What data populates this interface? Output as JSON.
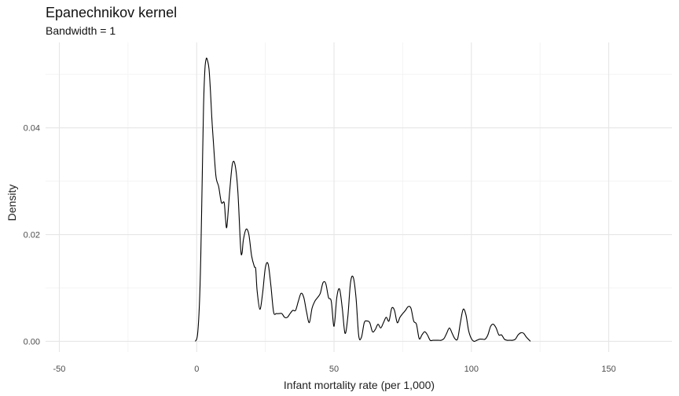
{
  "chart_data": {
    "type": "line",
    "title": "Epanechnikov kernel",
    "subtitle": "Bandwidth = 1",
    "xlabel": "Infant mortality rate (per 1,000)",
    "ylabel": "Density",
    "xlim": [
      -55,
      173
    ],
    "ylim": [
      -0.002,
      0.056
    ],
    "x_ticks": [
      -50,
      0,
      50,
      100,
      150
    ],
    "x_tick_labels": [
      "-50",
      "0",
      "50",
      "100",
      "150"
    ],
    "y_ticks": [
      0.0,
      0.02,
      0.04
    ],
    "y_tick_labels": [
      "0.00",
      "0.02",
      "0.04"
    ],
    "grid": true,
    "series": [
      {
        "x": [
          -0.5,
          0.3,
          1,
          1.5,
          2,
          2.5,
          3,
          3.5,
          4,
          4.5,
          5,
          5.5,
          6,
          7,
          8,
          9,
          10,
          10.5,
          11,
          12,
          13,
          14,
          15,
          16,
          16.5,
          17,
          18,
          19,
          20,
          21,
          21.5,
          22,
          23,
          24,
          25,
          26,
          27,
          28,
          29,
          30,
          31,
          32,
          33,
          34,
          35,
          36,
          37,
          38,
          39,
          40,
          41,
          42,
          43,
          44,
          45,
          46,
          47,
          48,
          49,
          50,
          51,
          52,
          53,
          54,
          55,
          56,
          57,
          58,
          59,
          60,
          61,
          62,
          63,
          64,
          65,
          66,
          67,
          68,
          69,
          70,
          71,
          72,
          73,
          74,
          75,
          76,
          77,
          78,
          79,
          80,
          81,
          82,
          83,
          84,
          85,
          86,
          87,
          88,
          89,
          90,
          91,
          92,
          93,
          94,
          95,
          96,
          97,
          98,
          99,
          100,
          101,
          102,
          103,
          104,
          105,
          106,
          107,
          108,
          109,
          110,
          111,
          112,
          113,
          114,
          115,
          116,
          117,
          118,
          119,
          120,
          121.5
        ],
        "y": [
          0.0,
          0.0012,
          0.007,
          0.016,
          0.03,
          0.044,
          0.051,
          0.053,
          0.0525,
          0.051,
          0.047,
          0.042,
          0.038,
          0.031,
          0.029,
          0.026,
          0.026,
          0.023,
          0.0215,
          0.028,
          0.0332,
          0.033,
          0.028,
          0.0175,
          0.0165,
          0.019,
          0.021,
          0.02,
          0.016,
          0.014,
          0.0135,
          0.0095,
          0.006,
          0.009,
          0.0138,
          0.0145,
          0.0105,
          0.0055,
          0.0052,
          0.0052,
          0.0052,
          0.0045,
          0.0045,
          0.0052,
          0.0058,
          0.0058,
          0.0075,
          0.009,
          0.0082,
          0.0055,
          0.0035,
          0.0062,
          0.0075,
          0.0082,
          0.009,
          0.011,
          0.0108,
          0.0082,
          0.0075,
          0.0028,
          0.0082,
          0.0098,
          0.0062,
          0.0015,
          0.0045,
          0.011,
          0.012,
          0.0082,
          0.001,
          0.0008,
          0.0035,
          0.0038,
          0.0035,
          0.0018,
          0.0022,
          0.0032,
          0.0025,
          0.0035,
          0.0045,
          0.0038,
          0.0062,
          0.0058,
          0.0035,
          0.0045,
          0.0052,
          0.0058,
          0.0065,
          0.0062,
          0.0038,
          0.0032,
          0.0005,
          0.0012,
          0.0018,
          0.0012,
          0.0002,
          0.0002,
          0.0002,
          0.0002,
          0.0002,
          0.0005,
          0.0015,
          0.0025,
          0.0015,
          0.0005,
          0.0005,
          0.0035,
          0.006,
          0.005,
          0.002,
          0.0005,
          0.0,
          0.0002,
          0.0004,
          0.0004,
          0.0004,
          0.0012,
          0.0028,
          0.0032,
          0.0025,
          0.0012,
          0.0012,
          0.0004,
          0.0002,
          0.0002,
          0.0002,
          0.0004,
          0.0012,
          0.0016,
          0.0015,
          0.0008,
          0.0
        ]
      }
    ]
  }
}
